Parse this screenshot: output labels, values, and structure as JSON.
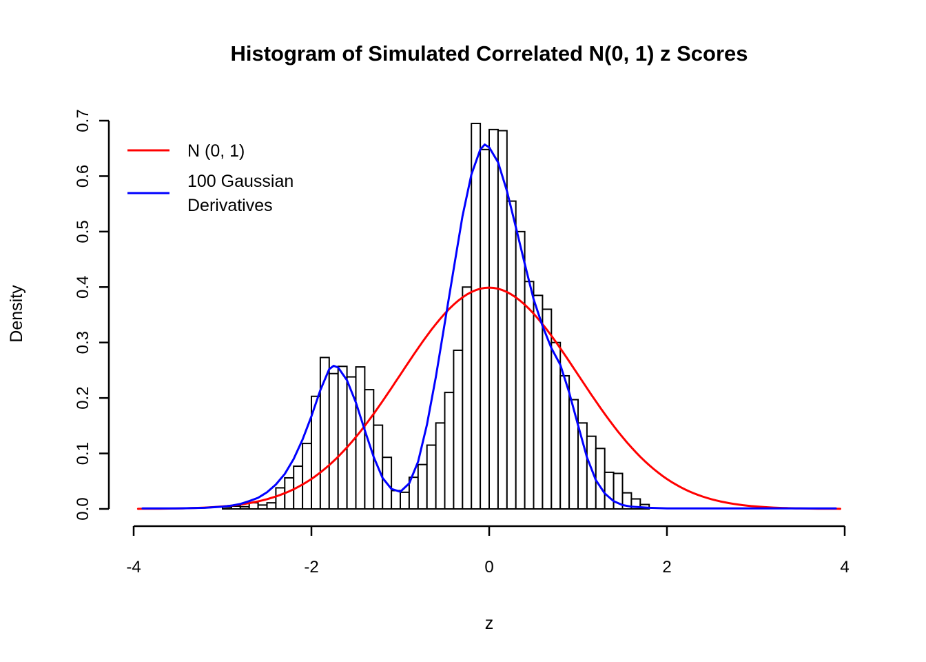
{
  "chart_data": {
    "type": "histogram",
    "title": "Histogram of Simulated Correlated N(0, 1) z Scores",
    "xlabel": "z",
    "ylabel": "Density",
    "xlim": [
      -4,
      4
    ],
    "ylim": [
      0.0,
      0.7
    ],
    "x_ticks": [
      -4,
      -2,
      0,
      2,
      4
    ],
    "y_ticks": [
      0.0,
      0.1,
      0.2,
      0.3,
      0.4,
      0.5,
      0.6,
      0.7
    ],
    "grid": false,
    "legend_position": "top-left",
    "histogram": {
      "bar_fill": "#ffffff",
      "bar_stroke": "#000000",
      "start": -3.0,
      "bin_width": 0.1,
      "densities": [
        0.003,
        0.005,
        0.004,
        0.011,
        0.007,
        0.011,
        0.038,
        0.056,
        0.077,
        0.118,
        0.203,
        0.273,
        0.244,
        0.257,
        0.238,
        0.256,
        0.215,
        0.151,
        0.093,
        0.033,
        0.03,
        0.057,
        0.08,
        0.115,
        0.155,
        0.21,
        0.286,
        0.4,
        0.695,
        0.648,
        0.684,
        0.682,
        0.555,
        0.5,
        0.41,
        0.385,
        0.36,
        0.3,
        0.24,
        0.197,
        0.155,
        0.131,
        0.109,
        0.066,
        0.064,
        0.029,
        0.018,
        0.008
      ]
    },
    "series": [
      {
        "name": "N (0, 1)",
        "color": "#ff0000",
        "kind": "normal_pdf",
        "mean": 0,
        "sd": 1,
        "range": [
          -3.95,
          3.95
        ]
      },
      {
        "name": "100 Gaussian Derivatives",
        "color": "#0000ff",
        "kind": "points",
        "points": [
          [
            -3.9,
            0.001
          ],
          [
            -3.5,
            0.001
          ],
          [
            -3.2,
            0.002
          ],
          [
            -3.0,
            0.004
          ],
          [
            -2.9,
            0.006
          ],
          [
            -2.8,
            0.009
          ],
          [
            -2.7,
            0.014
          ],
          [
            -2.6,
            0.02
          ],
          [
            -2.5,
            0.03
          ],
          [
            -2.4,
            0.044
          ],
          [
            -2.3,
            0.063
          ],
          [
            -2.2,
            0.09
          ],
          [
            -2.1,
            0.125
          ],
          [
            -2.0,
            0.167
          ],
          [
            -1.9,
            0.214
          ],
          [
            -1.8,
            0.252
          ],
          [
            -1.75,
            0.258
          ],
          [
            -1.7,
            0.255
          ],
          [
            -1.6,
            0.232
          ],
          [
            -1.5,
            0.192
          ],
          [
            -1.4,
            0.142
          ],
          [
            -1.3,
            0.094
          ],
          [
            -1.2,
            0.056
          ],
          [
            -1.1,
            0.036
          ],
          [
            -1.0,
            0.031
          ],
          [
            -0.9,
            0.046
          ],
          [
            -0.8,
            0.085
          ],
          [
            -0.7,
            0.152
          ],
          [
            -0.6,
            0.238
          ],
          [
            -0.5,
            0.335
          ],
          [
            -0.4,
            0.432
          ],
          [
            -0.3,
            0.528
          ],
          [
            -0.2,
            0.603
          ],
          [
            -0.1,
            0.648
          ],
          [
            -0.05,
            0.657
          ],
          [
            0.0,
            0.652
          ],
          [
            0.1,
            0.625
          ],
          [
            0.2,
            0.573
          ],
          [
            0.3,
            0.508
          ],
          [
            0.4,
            0.442
          ],
          [
            0.5,
            0.378
          ],
          [
            0.6,
            0.33
          ],
          [
            0.7,
            0.29
          ],
          [
            0.8,
            0.26
          ],
          [
            0.9,
            0.21
          ],
          [
            1.0,
            0.151
          ],
          [
            1.1,
            0.093
          ],
          [
            1.2,
            0.052
          ],
          [
            1.3,
            0.028
          ],
          [
            1.4,
            0.014
          ],
          [
            1.5,
            0.007
          ],
          [
            1.6,
            0.004
          ],
          [
            1.8,
            0.002
          ],
          [
            2.0,
            0.001
          ],
          [
            2.5,
            0.001
          ],
          [
            3.0,
            0.001
          ],
          [
            3.5,
            0.001
          ],
          [
            3.9,
            0.001
          ]
        ]
      }
    ]
  },
  "legend": {
    "items": [
      {
        "color": "#ff0000",
        "label": "N (0, 1)",
        "label_lines": [
          "N (0, 1)"
        ]
      },
      {
        "color": "#0000ff",
        "label": "100 Gaussian Derivatives",
        "label_lines": [
          "100 Gaussian",
          "Derivatives"
        ]
      }
    ]
  }
}
